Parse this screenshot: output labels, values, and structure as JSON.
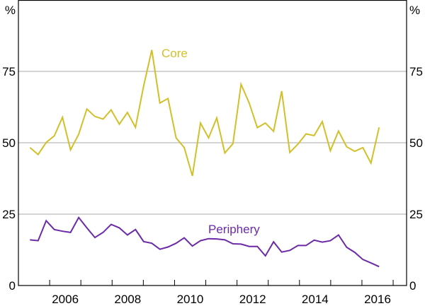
{
  "chart_data": {
    "type": "line",
    "title": "",
    "xlabel": "",
    "ylabel": "%",
    "ylabel_right": "%",
    "xlim": [
      2005.0,
      2017.43
    ],
    "ylim": [
      0,
      100
    ],
    "yticks": [
      0,
      25,
      50,
      75
    ],
    "ytick_labels": [
      "0",
      "25",
      "50",
      "75"
    ],
    "xtick_years": [
      2006,
      2007,
      2008,
      2009,
      2010,
      2011,
      2012,
      2013,
      2014,
      2015,
      2016,
      2017
    ],
    "xtick_labels": [
      "2006",
      "2008",
      "2010",
      "2012",
      "2014",
      "2016"
    ],
    "xtick_label_years": [
      2006,
      2008,
      2010,
      2012,
      2014,
      2016
    ],
    "grid": true,
    "legend": "inline labels",
    "x": [
      2005.37,
      2005.63,
      2005.89,
      2006.15,
      2006.41,
      2006.67,
      2006.93,
      2007.19,
      2007.45,
      2007.71,
      2007.97,
      2008.23,
      2008.49,
      2008.75,
      2009.01,
      2009.27,
      2009.53,
      2009.79,
      2010.05,
      2010.31,
      2010.57,
      2010.83,
      2011.09,
      2011.35,
      2011.61,
      2011.87,
      2012.13,
      2012.39,
      2012.65,
      2012.91,
      2013.17,
      2013.43,
      2013.69,
      2013.95,
      2014.21,
      2014.47,
      2014.73,
      2014.99,
      2015.25,
      2015.51,
      2015.77,
      2016.03,
      2016.29,
      2016.55
    ],
    "series": [
      {
        "name": "Core",
        "color": "#d2c02a",
        "values": [
          48.3,
          45.9,
          50.1,
          52.4,
          58.9,
          47.5,
          53.0,
          61.8,
          59.2,
          58.3,
          61.5,
          56.5,
          60.6,
          55.4,
          69.9,
          82.5,
          63.9,
          65.5,
          51.7,
          48.3,
          38.4,
          56.9,
          51.7,
          58.7,
          46.4,
          49.7,
          70.5,
          63.9,
          55.3,
          56.9,
          54.0,
          68.1,
          46.6,
          49.5,
          53.1,
          52.5,
          57.4,
          47.2,
          54.1,
          48.6,
          47.0,
          48.3,
          42.9,
          55.4
        ]
      },
      {
        "name": "Periphery",
        "color": "#6b2aa6",
        "values": [
          16.0,
          15.7,
          22.7,
          19.6,
          19.0,
          18.6,
          23.8,
          20.2,
          16.8,
          18.6,
          21.4,
          20.2,
          17.7,
          19.6,
          15.4,
          14.8,
          12.7,
          13.5,
          14.8,
          16.7,
          13.8,
          15.7,
          16.4,
          16.3,
          16.0,
          14.6,
          14.5,
          13.7,
          13.7,
          10.4,
          15.3,
          11.7,
          12.3,
          14.0,
          14.0,
          15.9,
          15.2,
          15.7,
          17.7,
          13.4,
          11.6,
          9.1,
          7.9,
          6.6
        ]
      }
    ]
  }
}
